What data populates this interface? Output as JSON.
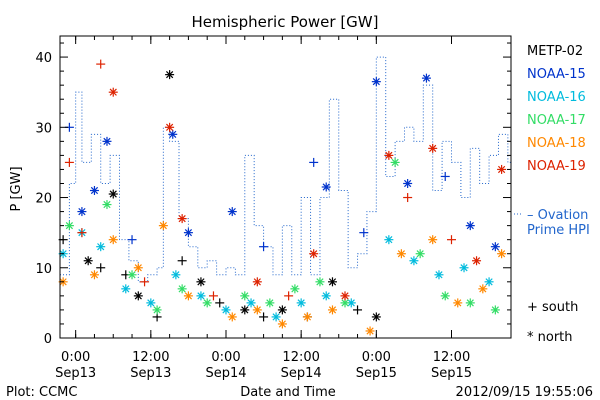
{
  "chart_data": {
    "type": "scatter",
    "title": "Hemispheric Power [GW]",
    "ylabel": "P [GW]",
    "xlabel": "Date and Time",
    "ylim": [
      0,
      43
    ],
    "xlim": [
      "2012-09-12T21:30",
      "2012-09-15T21:30"
    ],
    "yticks": [
      0,
      10,
      20,
      30,
      40
    ],
    "xticks": [
      {
        "time": "2012-09-13T00:00",
        "label1": "0:00",
        "label2": "Sep13"
      },
      {
        "time": "2012-09-13T12:00",
        "label1": "12:00",
        "label2": "Sep13"
      },
      {
        "time": "2012-09-14T00:00",
        "label1": "0:00",
        "label2": "Sep14"
      },
      {
        "time": "2012-09-14T12:00",
        "label1": "12:00",
        "label2": "Sep14"
      },
      {
        "time": "2012-09-15T00:00",
        "label1": "0:00",
        "label2": "Sep15"
      },
      {
        "time": "2012-09-15T12:00",
        "label1": "12:00",
        "label2": "Sep15"
      }
    ],
    "series": [
      {
        "name": "METP-02",
        "color": "#000000",
        "points": [
          [
            "2012-09-12T22:00",
            14,
            "+"
          ],
          [
            "2012-09-13T02:00",
            11,
            "*"
          ],
          [
            "2012-09-13T04:00",
            10,
            "+"
          ],
          [
            "2012-09-13T06:00",
            20.5,
            "*"
          ],
          [
            "2012-09-13T08:00",
            9,
            "+"
          ],
          [
            "2012-09-13T10:00",
            6,
            "*"
          ],
          [
            "2012-09-13T13:00",
            3,
            "+"
          ],
          [
            "2012-09-13T15:00",
            37.5,
            "*"
          ],
          [
            "2012-09-13T17:00",
            11,
            "+"
          ],
          [
            "2012-09-13T20:00",
            8,
            "*"
          ],
          [
            "2012-09-13T23:00",
            5,
            "+"
          ],
          [
            "2012-09-14T03:00",
            4,
            "*"
          ],
          [
            "2012-09-14T06:00",
            3,
            "+"
          ],
          [
            "2012-09-14T09:00",
            4,
            "*"
          ],
          [
            "2012-09-14T13:00",
            3,
            "+"
          ],
          [
            "2012-09-14T17:00",
            8,
            "*"
          ],
          [
            "2012-09-14T21:00",
            4,
            "+"
          ],
          [
            "2012-09-15T00:00",
            3,
            "*"
          ]
        ]
      },
      {
        "name": "NOAA-15",
        "color": "#0033cc",
        "points": [
          [
            "2012-09-12T23:00",
            30,
            "+"
          ],
          [
            "2012-09-13T01:00",
            18,
            "*"
          ],
          [
            "2012-09-13T03:00",
            21,
            "*"
          ],
          [
            "2012-09-13T05:00",
            28,
            "*"
          ],
          [
            "2012-09-13T09:00",
            14,
            "+"
          ],
          [
            "2012-09-13T15:30",
            29,
            "*"
          ],
          [
            "2012-09-13T18:00",
            15,
            "*"
          ],
          [
            "2012-09-14T01:00",
            18,
            "*"
          ],
          [
            "2012-09-14T06:00",
            13,
            "+"
          ],
          [
            "2012-09-14T14:00",
            25,
            "+"
          ],
          [
            "2012-09-14T16:00",
            21.5,
            "*"
          ],
          [
            "2012-09-14T22:00",
            15,
            "+"
          ],
          [
            "2012-09-15T00:00",
            36.5,
            "*"
          ],
          [
            "2012-09-15T05:00",
            22,
            "*"
          ],
          [
            "2012-09-15T08:00",
            37,
            "*"
          ],
          [
            "2012-09-15T11:00",
            23,
            "+"
          ],
          [
            "2012-09-15T15:00",
            16,
            "*"
          ],
          [
            "2012-09-15T19:00",
            13,
            "*"
          ]
        ]
      },
      {
        "name": "NOAA-16",
        "color": "#00bbdd",
        "points": [
          [
            "2012-09-12T22:00",
            12,
            "*"
          ],
          [
            "2012-09-13T01:00",
            15,
            "*"
          ],
          [
            "2012-09-13T04:00",
            13,
            "*"
          ],
          [
            "2012-09-13T08:00",
            7,
            "*"
          ],
          [
            "2012-09-13T12:00",
            5,
            "*"
          ],
          [
            "2012-09-13T16:00",
            9,
            "*"
          ],
          [
            "2012-09-13T20:00",
            6,
            "*"
          ],
          [
            "2012-09-14T00:00",
            4,
            "*"
          ],
          [
            "2012-09-14T04:00",
            5,
            "*"
          ],
          [
            "2012-09-14T08:00",
            3,
            "*"
          ],
          [
            "2012-09-14T12:00",
            5,
            "*"
          ],
          [
            "2012-09-14T16:00",
            6,
            "*"
          ],
          [
            "2012-09-14T20:00",
            5,
            "*"
          ],
          [
            "2012-09-15T02:00",
            14,
            "*"
          ],
          [
            "2012-09-15T06:00",
            11,
            "*"
          ],
          [
            "2012-09-15T10:00",
            9,
            "*"
          ],
          [
            "2012-09-15T14:00",
            10,
            "*"
          ],
          [
            "2012-09-15T18:00",
            8,
            "*"
          ]
        ]
      },
      {
        "name": "NOAA-17",
        "color": "#33dd66",
        "points": [
          [
            "2012-09-12T23:00",
            16,
            "*"
          ],
          [
            "2012-09-13T05:00",
            19,
            "*"
          ],
          [
            "2012-09-13T09:00",
            9,
            "*"
          ],
          [
            "2012-09-13T13:00",
            4,
            "*"
          ],
          [
            "2012-09-13T17:00",
            7,
            "*"
          ],
          [
            "2012-09-13T21:00",
            5,
            "*"
          ],
          [
            "2012-09-14T03:00",
            6,
            "*"
          ],
          [
            "2012-09-14T07:00",
            5,
            "*"
          ],
          [
            "2012-09-14T11:00",
            7,
            "*"
          ],
          [
            "2012-09-14T15:00",
            8,
            "*"
          ],
          [
            "2012-09-14T19:00",
            5,
            "*"
          ],
          [
            "2012-09-15T03:00",
            25,
            "*"
          ],
          [
            "2012-09-15T07:00",
            12,
            "*"
          ],
          [
            "2012-09-15T11:00",
            6,
            "*"
          ],
          [
            "2012-09-15T15:00",
            5,
            "*"
          ],
          [
            "2012-09-15T19:00",
            4,
            "*"
          ]
        ]
      },
      {
        "name": "NOAA-18",
        "color": "#ff8800",
        "points": [
          [
            "2012-09-12T22:00",
            8,
            "*"
          ],
          [
            "2012-09-13T03:00",
            9,
            "*"
          ],
          [
            "2012-09-13T06:00",
            14,
            "*"
          ],
          [
            "2012-09-13T10:00",
            10,
            "*"
          ],
          [
            "2012-09-13T14:00",
            16,
            "*"
          ],
          [
            "2012-09-13T18:00",
            6,
            "*"
          ],
          [
            "2012-09-14T01:00",
            3,
            "*"
          ],
          [
            "2012-09-14T05:00",
            4,
            "*"
          ],
          [
            "2012-09-14T09:00",
            2,
            "*"
          ],
          [
            "2012-09-14T13:00",
            3,
            "*"
          ],
          [
            "2012-09-14T17:00",
            4,
            "*"
          ],
          [
            "2012-09-14T23:00",
            1,
            "*"
          ],
          [
            "2012-09-15T04:00",
            12,
            "*"
          ],
          [
            "2012-09-15T09:00",
            14,
            "*"
          ],
          [
            "2012-09-15T13:00",
            5,
            "*"
          ],
          [
            "2012-09-15T17:00",
            7,
            "*"
          ],
          [
            "2012-09-15T20:00",
            12,
            "*"
          ]
        ]
      },
      {
        "name": "NOAA-19",
        "color": "#dd2200",
        "points": [
          [
            "2012-09-12T23:00",
            25,
            "+"
          ],
          [
            "2012-09-13T01:00",
            15,
            "+"
          ],
          [
            "2012-09-13T04:00",
            39,
            "+"
          ],
          [
            "2012-09-13T06:00",
            35,
            "*"
          ],
          [
            "2012-09-13T11:00",
            8,
            "+"
          ],
          [
            "2012-09-13T15:00",
            30,
            "*"
          ],
          [
            "2012-09-13T17:00",
            17,
            "*"
          ],
          [
            "2012-09-13T22:00",
            6,
            "+"
          ],
          [
            "2012-09-14T05:00",
            8,
            "*"
          ],
          [
            "2012-09-14T10:00",
            6,
            "+"
          ],
          [
            "2012-09-14T14:00",
            12,
            "*"
          ],
          [
            "2012-09-14T19:00",
            6,
            "*"
          ],
          [
            "2012-09-15T02:00",
            26,
            "*"
          ],
          [
            "2012-09-15T05:00",
            20,
            "+"
          ],
          [
            "2012-09-15T09:00",
            27,
            "*"
          ],
          [
            "2012-09-15T12:00",
            14,
            "+"
          ],
          [
            "2012-09-15T16:00",
            11,
            "*"
          ],
          [
            "2012-09-15T20:00",
            24,
            "*"
          ]
        ]
      },
      {
        "name": "Ovation Prime HPI",
        "color": "#2266cc",
        "style": "dotted-step",
        "points": [
          [
            "2012-09-12T21:30",
            9
          ],
          [
            "2012-09-12T23:00",
            22
          ],
          [
            "2012-09-13T00:00",
            35
          ],
          [
            "2012-09-13T01:00",
            25
          ],
          [
            "2012-09-13T02:30",
            29
          ],
          [
            "2012-09-13T04:00",
            22
          ],
          [
            "2012-09-13T05:30",
            26
          ],
          [
            "2012-09-13T07:00",
            14
          ],
          [
            "2012-09-13T08:30",
            11
          ],
          [
            "2012-09-13T10:00",
            8
          ],
          [
            "2012-09-13T11:30",
            9
          ],
          [
            "2012-09-13T13:00",
            10
          ],
          [
            "2012-09-13T14:00",
            30
          ],
          [
            "2012-09-13T15:00",
            28
          ],
          [
            "2012-09-13T16:30",
            17
          ],
          [
            "2012-09-13T18:00",
            13
          ],
          [
            "2012-09-13T19:30",
            10
          ],
          [
            "2012-09-13T21:00",
            11
          ],
          [
            "2012-09-13T22:30",
            9
          ],
          [
            "2012-09-14T00:00",
            10
          ],
          [
            "2012-09-14T01:30",
            9
          ],
          [
            "2012-09-14T03:00",
            26
          ],
          [
            "2012-09-14T04:30",
            16
          ],
          [
            "2012-09-14T06:00",
            13
          ],
          [
            "2012-09-14T07:30",
            9
          ],
          [
            "2012-09-14T09:00",
            16
          ],
          [
            "2012-09-14T10:30",
            9
          ],
          [
            "2012-09-14T12:00",
            20
          ],
          [
            "2012-09-14T13:30",
            9
          ],
          [
            "2012-09-14T15:00",
            20
          ],
          [
            "2012-09-14T16:30",
            34
          ],
          [
            "2012-09-14T18:00",
            21
          ],
          [
            "2012-09-14T19:30",
            10
          ],
          [
            "2012-09-14T21:00",
            12
          ],
          [
            "2012-09-14T22:30",
            18
          ],
          [
            "2012-09-15T00:00",
            40
          ],
          [
            "2012-09-15T01:30",
            23
          ],
          [
            "2012-09-15T03:00",
            28
          ],
          [
            "2012-09-15T04:30",
            30
          ],
          [
            "2012-09-15T06:00",
            28
          ],
          [
            "2012-09-15T07:30",
            36
          ],
          [
            "2012-09-15T09:00",
            21
          ],
          [
            "2012-09-15T10:30",
            28
          ],
          [
            "2012-09-15T12:00",
            25
          ],
          [
            "2012-09-15T13:30",
            20
          ],
          [
            "2012-09-15T15:00",
            27
          ],
          [
            "2012-09-15T16:30",
            22
          ],
          [
            "2012-09-15T18:00",
            26
          ],
          [
            "2012-09-15T19:30",
            29
          ],
          [
            "2012-09-15T21:00",
            25
          ],
          [
            "2012-09-15T21:30",
            25
          ]
        ]
      }
    ],
    "legend_position": "right",
    "legend_markers": [
      {
        "symbol": "+",
        "label": "south"
      },
      {
        "symbol": "*",
        "label": "north"
      }
    ],
    "ovation_label": [
      "– Ovation",
      "Prime HPI"
    ],
    "ovation_label_color": "#2266cc"
  },
  "footer": {
    "credit": "Plot: CCMC",
    "timestamp": "2012/09/15 19:55:06"
  }
}
